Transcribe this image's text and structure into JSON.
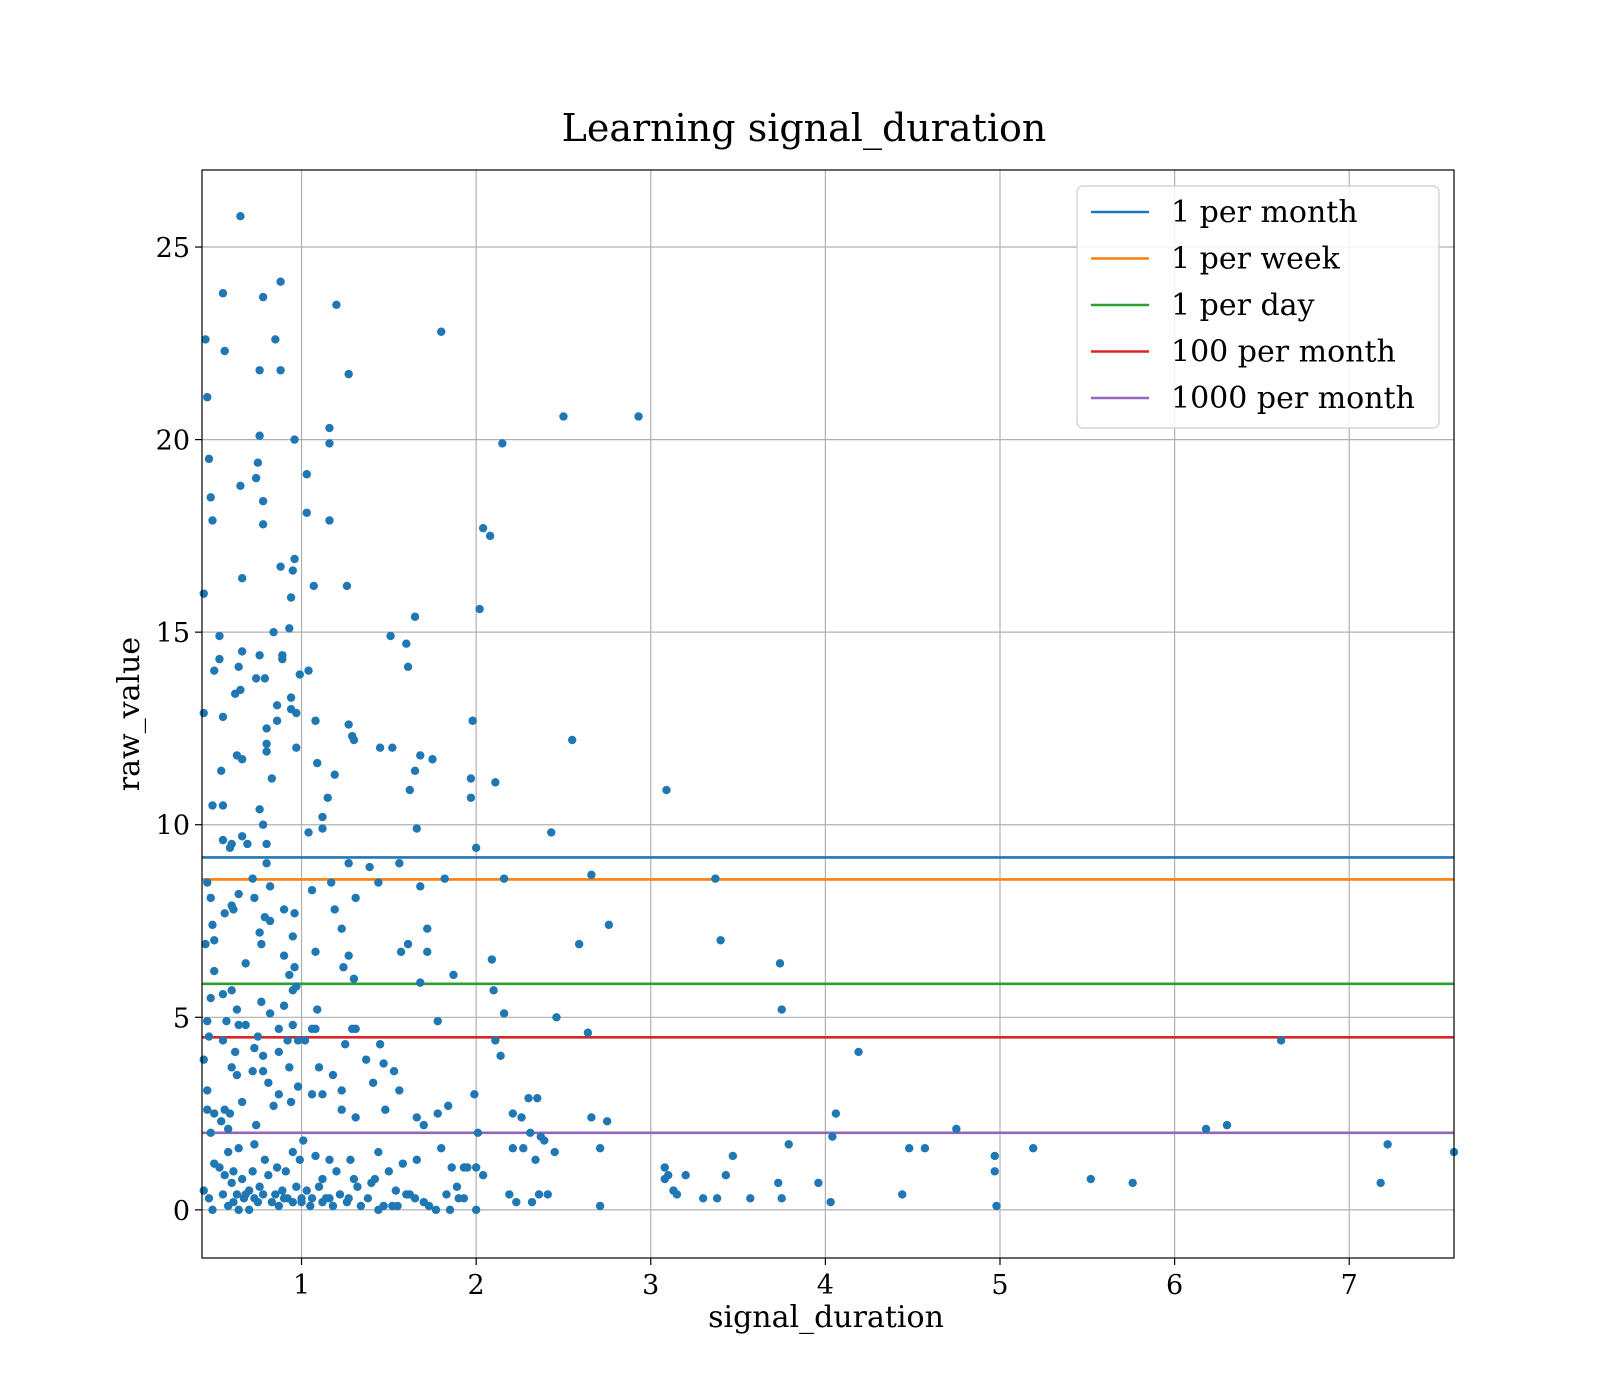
{
  "chart_data": {
    "type": "scatter",
    "title": "Learning signal_duration",
    "xlabel": "signal_duration",
    "ylabel": "raw_value",
    "xlim": [
      0.43,
      7.6
    ],
    "ylim": [
      -1.25,
      27.0
    ],
    "xticks": [
      1,
      2,
      3,
      4,
      5,
      6,
      7
    ],
    "yticks": [
      0,
      5,
      10,
      15,
      20,
      25
    ],
    "grid": true,
    "legend": "top-right",
    "point_color": "#1f77b4",
    "hlines": [
      {
        "name": "1 per month",
        "y": 9.15,
        "color": "#1f77b4"
      },
      {
        "name": "1 per week",
        "y": 8.58,
        "color": "#ff7f0e"
      },
      {
        "name": "1 per day",
        "y": 5.87,
        "color": "#2ca02c"
      },
      {
        "name": "100 per month",
        "y": 4.48,
        "color": "#d62728"
      },
      {
        "name": "1000 per month",
        "y": 2.0,
        "color": "#9467bd"
      }
    ],
    "points": [
      [
        0.65,
        25.8
      ],
      [
        0.88,
        24.1
      ],
      [
        0.55,
        23.8
      ],
      [
        0.78,
        23.7
      ],
      [
        1.2,
        23.5
      ],
      [
        0.45,
        22.6
      ],
      [
        0.85,
        22.6
      ],
      [
        1.8,
        22.8
      ],
      [
        0.56,
        22.3
      ],
      [
        0.76,
        21.8
      ],
      [
        0.88,
        21.8
      ],
      [
        1.27,
        21.7
      ],
      [
        0.46,
        21.1
      ],
      [
        2.5,
        20.6
      ],
      [
        2.93,
        20.6
      ],
      [
        1.16,
        20.3
      ],
      [
        0.76,
        20.1
      ],
      [
        0.96,
        20.0
      ],
      [
        1.16,
        19.9
      ],
      [
        2.15,
        19.9
      ],
      [
        0.47,
        19.5
      ],
      [
        0.75,
        19.4
      ],
      [
        1.03,
        19.1
      ],
      [
        0.74,
        19.0
      ],
      [
        0.65,
        18.8
      ],
      [
        0.48,
        18.5
      ],
      [
        0.78,
        18.4
      ],
      [
        1.03,
        18.1
      ],
      [
        0.49,
        17.9
      ],
      [
        1.16,
        17.9
      ],
      [
        0.78,
        17.8
      ],
      [
        2.04,
        17.7
      ],
      [
        2.08,
        17.5
      ],
      [
        0.96,
        16.9
      ],
      [
        0.88,
        16.7
      ],
      [
        0.95,
        16.6
      ],
      [
        0.66,
        16.4
      ],
      [
        1.07,
        16.2
      ],
      [
        1.26,
        16.2
      ],
      [
        0.44,
        16.0
      ],
      [
        0.94,
        15.9
      ],
      [
        2.02,
        15.6
      ],
      [
        1.65,
        15.4
      ],
      [
        0.84,
        15.0
      ],
      [
        0.93,
        15.1
      ],
      [
        0.53,
        14.9
      ],
      [
        1.51,
        14.9
      ],
      [
        1.6,
        14.7
      ],
      [
        0.89,
        14.4
      ],
      [
        0.66,
        14.5
      ],
      [
        0.76,
        14.4
      ],
      [
        0.89,
        14.3
      ],
      [
        0.53,
        14.3
      ],
      [
        1.61,
        14.1
      ],
      [
        0.5,
        14.0
      ],
      [
        0.64,
        14.1
      ],
      [
        0.99,
        13.9
      ],
      [
        1.04,
        14.0
      ],
      [
        0.74,
        13.8
      ],
      [
        0.79,
        13.8
      ],
      [
        0.65,
        13.5
      ],
      [
        0.62,
        13.4
      ],
      [
        0.94,
        13.3
      ],
      [
        0.86,
        13.1
      ],
      [
        0.94,
        13.0
      ],
      [
        0.44,
        12.9
      ],
      [
        0.55,
        12.8
      ],
      [
        0.86,
        12.7
      ],
      [
        0.97,
        12.9
      ],
      [
        1.08,
        12.7
      ],
      [
        1.98,
        12.7
      ],
      [
        1.27,
        12.6
      ],
      [
        0.8,
        12.5
      ],
      [
        1.3,
        12.2
      ],
      [
        1.29,
        12.3
      ],
      [
        2.55,
        12.2
      ],
      [
        0.8,
        12.1
      ],
      [
        1.45,
        12.0
      ],
      [
        1.52,
        12.0
      ],
      [
        0.97,
        12.0
      ],
      [
        0.8,
        11.9
      ],
      [
        0.63,
        11.8
      ],
      [
        0.66,
        11.7
      ],
      [
        1.68,
        11.8
      ],
      [
        1.75,
        11.7
      ],
      [
        1.09,
        11.6
      ],
      [
        0.54,
        11.4
      ],
      [
        1.65,
        11.4
      ],
      [
        1.19,
        11.3
      ],
      [
        0.83,
        11.2
      ],
      [
        1.97,
        11.2
      ],
      [
        2.11,
        11.1
      ],
      [
        3.09,
        10.9
      ],
      [
        1.62,
        10.9
      ],
      [
        1.15,
        10.7
      ],
      [
        1.97,
        10.7
      ],
      [
        0.49,
        10.5
      ],
      [
        0.55,
        10.5
      ],
      [
        0.76,
        10.4
      ],
      [
        1.12,
        10.2
      ],
      [
        0.78,
        10.0
      ],
      [
        1.12,
        9.9
      ],
      [
        1.66,
        9.9
      ],
      [
        2.43,
        9.8
      ],
      [
        1.04,
        9.8
      ],
      [
        0.8,
        9.5
      ],
      [
        0.55,
        9.6
      ],
      [
        0.6,
        9.5
      ],
      [
        0.66,
        9.7
      ],
      [
        0.69,
        9.5
      ],
      [
        0.59,
        9.4
      ],
      [
        2.0,
        9.4
      ],
      [
        1.56,
        9.0
      ],
      [
        1.39,
        8.9
      ],
      [
        1.27,
        9.0
      ],
      [
        0.8,
        9.0
      ],
      [
        0.72,
        8.6
      ],
      [
        0.46,
        8.5
      ],
      [
        1.17,
        8.5
      ],
      [
        0.82,
        8.4
      ],
      [
        1.44,
        8.5
      ],
      [
        1.82,
        8.6
      ],
      [
        2.16,
        8.6
      ],
      [
        2.66,
        8.7
      ],
      [
        3.37,
        8.6
      ],
      [
        1.68,
        8.4
      ],
      [
        1.06,
        8.3
      ],
      [
        1.31,
        8.1
      ],
      [
        0.64,
        8.2
      ],
      [
        0.73,
        8.1
      ],
      [
        0.48,
        8.1
      ],
      [
        0.56,
        7.7
      ],
      [
        0.6,
        7.9
      ],
      [
        0.61,
        7.8
      ],
      [
        1.19,
        7.8
      ],
      [
        0.9,
        7.8
      ],
      [
        0.79,
        7.6
      ],
      [
        0.82,
        7.5
      ],
      [
        0.96,
        7.7
      ],
      [
        0.49,
        7.4
      ],
      [
        1.23,
        7.3
      ],
      [
        0.76,
        7.2
      ],
      [
        0.95,
        7.1
      ],
      [
        1.72,
        7.3
      ],
      [
        2.76,
        7.4
      ],
      [
        0.45,
        6.9
      ],
      [
        0.5,
        7.0
      ],
      [
        0.77,
        6.9
      ],
      [
        1.61,
        6.9
      ],
      [
        1.72,
        6.7
      ],
      [
        0.9,
        6.6
      ],
      [
        1.08,
        6.7
      ],
      [
        1.27,
        6.6
      ],
      [
        1.57,
        6.7
      ],
      [
        2.59,
        6.9
      ],
      [
        3.4,
        7.0
      ],
      [
        3.74,
        6.4
      ],
      [
        0.68,
        6.4
      ],
      [
        2.09,
        6.5
      ],
      [
        1.24,
        6.3
      ],
      [
        0.5,
        6.2
      ],
      [
        0.93,
        6.1
      ],
      [
        0.96,
        6.3
      ],
      [
        1.3,
        6.0
      ],
      [
        1.87,
        6.1
      ],
      [
        1.68,
        5.9
      ],
      [
        0.97,
        5.8
      ],
      [
        0.95,
        5.7
      ],
      [
        0.6,
        5.7
      ],
      [
        2.1,
        5.7
      ],
      [
        0.55,
        5.6
      ],
      [
        0.48,
        5.5
      ],
      [
        0.77,
        5.4
      ],
      [
        0.9,
        5.3
      ],
      [
        0.63,
        5.2
      ],
      [
        0.82,
        5.1
      ],
      [
        1.09,
        5.2
      ],
      [
        2.16,
        5.1
      ],
      [
        3.75,
        5.2
      ],
      [
        0.46,
        4.9
      ],
      [
        0.57,
        4.9
      ],
      [
        0.64,
        4.8
      ],
      [
        0.68,
        4.8
      ],
      [
        0.87,
        4.7
      ],
      [
        0.75,
        4.5
      ],
      [
        0.95,
        4.8
      ],
      [
        1.06,
        4.7
      ],
      [
        1.29,
        4.7
      ],
      [
        1.31,
        4.7
      ],
      [
        1.08,
        4.7
      ],
      [
        0.98,
        4.4
      ],
      [
        1.45,
        4.3
      ],
      [
        1.78,
        4.9
      ],
      [
        2.46,
        5.0
      ],
      [
        2.64,
        4.6
      ],
      [
        6.61,
        4.4
      ],
      [
        0.47,
        4.5
      ],
      [
        0.55,
        4.4
      ],
      [
        0.62,
        4.1
      ],
      [
        0.73,
        4.2
      ],
      [
        0.78,
        4.0
      ],
      [
        0.87,
        4.1
      ],
      [
        0.92,
        4.4
      ],
      [
        1.02,
        4.4
      ],
      [
        1.25,
        4.3
      ],
      [
        2.11,
        4.4
      ],
      [
        2.14,
        4.0
      ],
      [
        4.19,
        4.1
      ],
      [
        0.44,
        3.9
      ],
      [
        0.6,
        3.7
      ],
      [
        0.78,
        3.6
      ],
      [
        0.72,
        3.6
      ],
      [
        0.63,
        3.5
      ],
      [
        0.81,
        3.3
      ],
      [
        0.87,
        3.0
      ],
      [
        0.93,
        3.7
      ],
      [
        1.1,
        3.7
      ],
      [
        1.18,
        3.5
      ],
      [
        1.37,
        3.9
      ],
      [
        1.47,
        3.8
      ],
      [
        1.53,
        3.6
      ],
      [
        1.41,
        3.3
      ],
      [
        1.56,
        3.1
      ],
      [
        1.12,
        3.0
      ],
      [
        1.06,
        3.0
      ],
      [
        0.98,
        3.2
      ],
      [
        0.94,
        2.8
      ],
      [
        0.84,
        2.7
      ],
      [
        0.56,
        2.6
      ],
      [
        0.59,
        2.5
      ],
      [
        0.66,
        2.8
      ],
      [
        0.74,
        2.2
      ],
      [
        0.46,
        2.6
      ],
      [
        0.5,
        2.5
      ],
      [
        0.46,
        3.1
      ],
      [
        0.54,
        2.3
      ],
      [
        0.58,
        2.1
      ],
      [
        1.23,
        3.1
      ],
      [
        1.23,
        2.6
      ],
      [
        1.31,
        2.4
      ],
      [
        1.48,
        2.6
      ],
      [
        1.66,
        2.4
      ],
      [
        1.7,
        2.2
      ],
      [
        1.78,
        2.5
      ],
      [
        1.84,
        2.7
      ],
      [
        2.01,
        2.0
      ],
      [
        1.99,
        3.0
      ],
      [
        2.21,
        2.5
      ],
      [
        2.26,
        2.4
      ],
      [
        2.3,
        2.9
      ],
      [
        2.35,
        2.9
      ],
      [
        2.31,
        2.0
      ],
      [
        2.37,
        1.9
      ],
      [
        2.39,
        1.8
      ],
      [
        2.66,
        2.4
      ],
      [
        2.75,
        2.3
      ],
      [
        4.06,
        2.5
      ],
      [
        4.04,
        1.9
      ],
      [
        4.75,
        2.1
      ],
      [
        6.18,
        2.1
      ],
      [
        6.3,
        2.2
      ],
      [
        0.48,
        2.0
      ],
      [
        0.58,
        1.5
      ],
      [
        0.64,
        1.6
      ],
      [
        0.73,
        1.7
      ],
      [
        0.79,
        1.3
      ],
      [
        0.86,
        1.1
      ],
      [
        0.95,
        1.5
      ],
      [
        1.01,
        1.8
      ],
      [
        1.08,
        1.4
      ],
      [
        1.16,
        1.3
      ],
      [
        1.2,
        1.0
      ],
      [
        1.28,
        1.3
      ],
      [
        1.44,
        1.5
      ],
      [
        1.5,
        1.0
      ],
      [
        1.58,
        1.2
      ],
      [
        1.66,
        1.3
      ],
      [
        1.8,
        1.6
      ],
      [
        1.86,
        1.1
      ],
      [
        1.93,
        1.1
      ],
      [
        2.04,
        0.9
      ],
      [
        2.21,
        1.6
      ],
      [
        2.27,
        1.6
      ],
      [
        2.34,
        1.3
      ],
      [
        2.45,
        1.5
      ],
      [
        2.71,
        1.6
      ],
      [
        3.08,
        1.1
      ],
      [
        3.08,
        0.8
      ],
      [
        3.1,
        0.9
      ],
      [
        3.2,
        0.9
      ],
      [
        3.47,
        1.4
      ],
      [
        3.43,
        0.9
      ],
      [
        3.73,
        0.7
      ],
      [
        3.79,
        1.7
      ],
      [
        3.96,
        0.7
      ],
      [
        4.48,
        1.6
      ],
      [
        4.57,
        1.6
      ],
      [
        4.97,
        1.4
      ],
      [
        4.97,
        1.0
      ],
      [
        5.19,
        1.6
      ],
      [
        5.52,
        0.8
      ],
      [
        5.76,
        0.7
      ],
      [
        7.22,
        1.7
      ],
      [
        7.18,
        0.7
      ],
      [
        7.6,
        1.5
      ],
      [
        0.5,
        1.2
      ],
      [
        0.53,
        1.1
      ],
      [
        0.56,
        0.9
      ],
      [
        0.6,
        0.7
      ],
      [
        0.63,
        0.4
      ],
      [
        0.66,
        0.8
      ],
      [
        0.7,
        0.5
      ],
      [
        0.73,
        0.3
      ],
      [
        0.76,
        0.6
      ],
      [
        0.81,
        0.9
      ],
      [
        0.85,
        0.4
      ],
      [
        0.89,
        0.5
      ],
      [
        0.92,
        0.3
      ],
      [
        0.97,
        0.6
      ],
      [
        1.0,
        0.2
      ],
      [
        1.03,
        0.5
      ],
      [
        1.06,
        0.3
      ],
      [
        1.1,
        0.6
      ],
      [
        1.14,
        0.3
      ],
      [
        1.18,
        0.1
      ],
      [
        1.22,
        0.4
      ],
      [
        1.26,
        0.2
      ],
      [
        1.32,
        0.6
      ],
      [
        1.38,
        0.3
      ],
      [
        1.42,
        0.8
      ],
      [
        1.47,
        0.1
      ],
      [
        1.54,
        0.5
      ],
      [
        1.62,
        0.4
      ],
      [
        1.7,
        0.2
      ],
      [
        1.77,
        0.0
      ],
      [
        1.83,
        0.4
      ],
      [
        1.89,
        0.6
      ],
      [
        1.93,
        0.3
      ],
      [
        2.0,
        0.0
      ],
      [
        2.19,
        0.4
      ],
      [
        2.23,
        0.2
      ],
      [
        2.32,
        0.2
      ],
      [
        2.36,
        0.4
      ],
      [
        2.41,
        0.4
      ],
      [
        2.71,
        0.1
      ],
      [
        3.13,
        0.5
      ],
      [
        3.15,
        0.4
      ],
      [
        3.3,
        0.3
      ],
      [
        3.38,
        0.3
      ],
      [
        3.57,
        0.3
      ],
      [
        3.75,
        0.3
      ],
      [
        4.03,
        0.2
      ],
      [
        4.44,
        0.4
      ],
      [
        4.98,
        0.1
      ],
      [
        0.44,
        0.5
      ],
      [
        0.47,
        0.3
      ],
      [
        0.49,
        0.0
      ],
      [
        0.55,
        0.4
      ],
      [
        0.58,
        0.1
      ],
      [
        0.61,
        0.2
      ],
      [
        0.64,
        0.0
      ],
      [
        0.67,
        0.3
      ],
      [
        0.7,
        0.0
      ],
      [
        0.75,
        0.2
      ],
      [
        0.78,
        0.4
      ],
      [
        0.83,
        0.2
      ],
      [
        0.87,
        0.1
      ],
      [
        0.9,
        0.3
      ],
      [
        0.95,
        0.2
      ],
      [
        1.0,
        0.3
      ],
      [
        1.05,
        0.1
      ],
      [
        1.12,
        0.2
      ],
      [
        1.16,
        0.3
      ],
      [
        1.27,
        0.3
      ],
      [
        1.34,
        0.1
      ],
      [
        1.44,
        0.0
      ],
      [
        1.55,
        0.1
      ],
      [
        1.6,
        0.4
      ],
      [
        1.73,
        0.1
      ],
      [
        1.85,
        0.0
      ],
      [
        1.9,
        0.3
      ],
      [
        1.95,
        1.1
      ],
      [
        2.0,
        1.1
      ],
      [
        1.65,
        0.3
      ],
      [
        1.52,
        0.1
      ],
      [
        1.3,
        0.8
      ],
      [
        1.4,
        0.7
      ],
      [
        1.12,
        0.8
      ],
      [
        0.91,
        1.0
      ],
      [
        0.99,
        1.3
      ],
      [
        0.72,
        1.0
      ],
      [
        0.68,
        0.4
      ],
      [
        0.61,
        1.0
      ]
    ]
  }
}
